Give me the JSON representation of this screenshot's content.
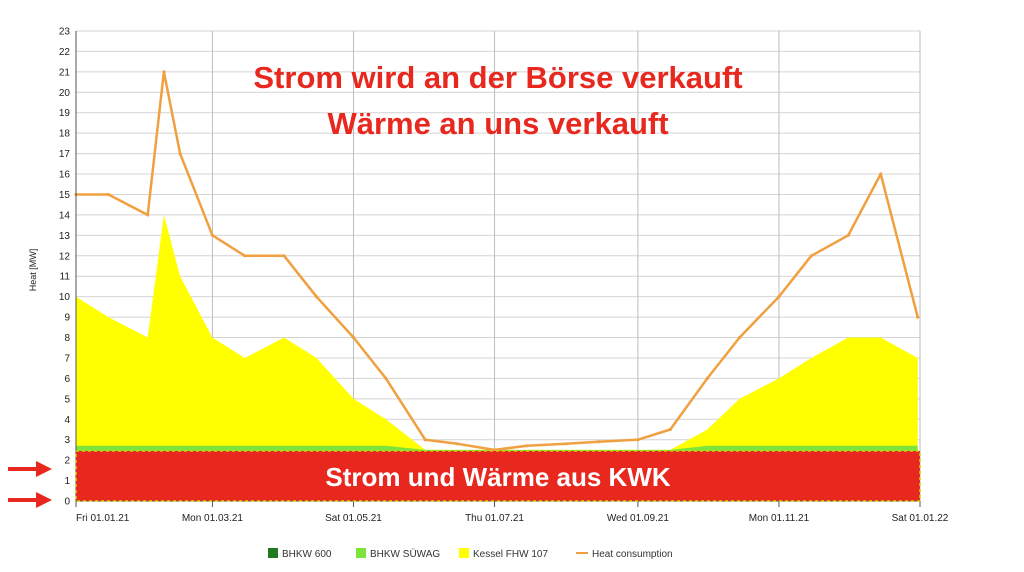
{
  "chart_data": {
    "type": "area",
    "ylabel": "Heat [MW]",
    "ylim": [
      0,
      23
    ],
    "yticks": [
      0,
      1,
      2,
      3,
      4,
      5,
      6,
      7,
      8,
      9,
      10,
      11,
      12,
      13,
      14,
      15,
      16,
      17,
      18,
      19,
      20,
      21,
      22,
      23
    ],
    "xlim": [
      "2021-01-01",
      "2022-01-01"
    ],
    "xticks": [
      {
        "date": "2021-01-01",
        "label": "Fri 01.01.21"
      },
      {
        "date": "2021-03-01",
        "label": "Mon 01.03.21"
      },
      {
        "date": "2021-05-01",
        "label": "Sat 01.05.21"
      },
      {
        "date": "2021-07-01",
        "label": "Thu 01.07.21"
      },
      {
        "date": "2021-09-01",
        "label": "Wed 01.09.21"
      },
      {
        "date": "2021-11-01",
        "label": "Mon 01.11.21"
      },
      {
        "date": "2022-01-01",
        "label": "Sat 01.01.22"
      }
    ],
    "grid": true,
    "legend_position": "bottom",
    "legend": [
      {
        "name": "BHKW 600",
        "color": "#1e7b1e",
        "kind": "box"
      },
      {
        "name": "BHKW SÜWAG",
        "color": "#7ee33a",
        "kind": "box"
      },
      {
        "name": "Kessel FHW 107",
        "color": "#ffff00",
        "kind": "box"
      },
      {
        "name": "Heat consumption",
        "color": "#f0a040",
        "kind": "line"
      }
    ],
    "x": [
      "2021-01-01",
      "2021-01-15",
      "2021-02-01",
      "2021-02-08",
      "2021-02-15",
      "2021-03-01",
      "2021-03-15",
      "2021-04-01",
      "2021-04-15",
      "2021-05-01",
      "2021-05-15",
      "2021-06-01",
      "2021-06-15",
      "2021-07-01",
      "2021-07-15",
      "2021-08-01",
      "2021-08-15",
      "2021-09-01",
      "2021-09-15",
      "2021-10-01",
      "2021-10-15",
      "2021-11-01",
      "2021-11-15",
      "2021-12-01",
      "2021-12-15",
      "2021-12-31"
    ],
    "series": [
      {
        "name": "BHKW SÜWAG",
        "values": [
          2.7,
          2.7,
          2.7,
          2.7,
          2.7,
          2.7,
          2.7,
          2.7,
          2.7,
          2.7,
          2.7,
          2.5,
          2.5,
          2.5,
          2.5,
          2.5,
          2.5,
          2.5,
          2.5,
          2.7,
          2.7,
          2.7,
          2.7,
          2.7,
          2.7,
          2.7
        ]
      },
      {
        "name": "Kessel FHW 107",
        "values": [
          10,
          9,
          8,
          14,
          11,
          8,
          7,
          8,
          7,
          5,
          4,
          2.5,
          2.5,
          2.5,
          2.5,
          2.5,
          2.5,
          2.5,
          2.5,
          3.5,
          5,
          6,
          7,
          8,
          8,
          7
        ]
      },
      {
        "name": "Heat consumption",
        "values": [
          15,
          15,
          14,
          21,
          17,
          13,
          12,
          12,
          10,
          8,
          6,
          3,
          2.8,
          2.5,
          2.7,
          2.8,
          2.9,
          3,
          3.5,
          6,
          8,
          10,
          12,
          13,
          16,
          9
        ]
      }
    ]
  },
  "annotations": {
    "headline_line1": "Strom wird an der Börse verkauft",
    "headline_line2": "Wärme an uns verkauft",
    "kwk_label": "Strom und Wärme aus KWK",
    "headline_color": "#e8281e",
    "kwk_box_color": "#e8281e",
    "arrow_color": "#e8281e"
  }
}
